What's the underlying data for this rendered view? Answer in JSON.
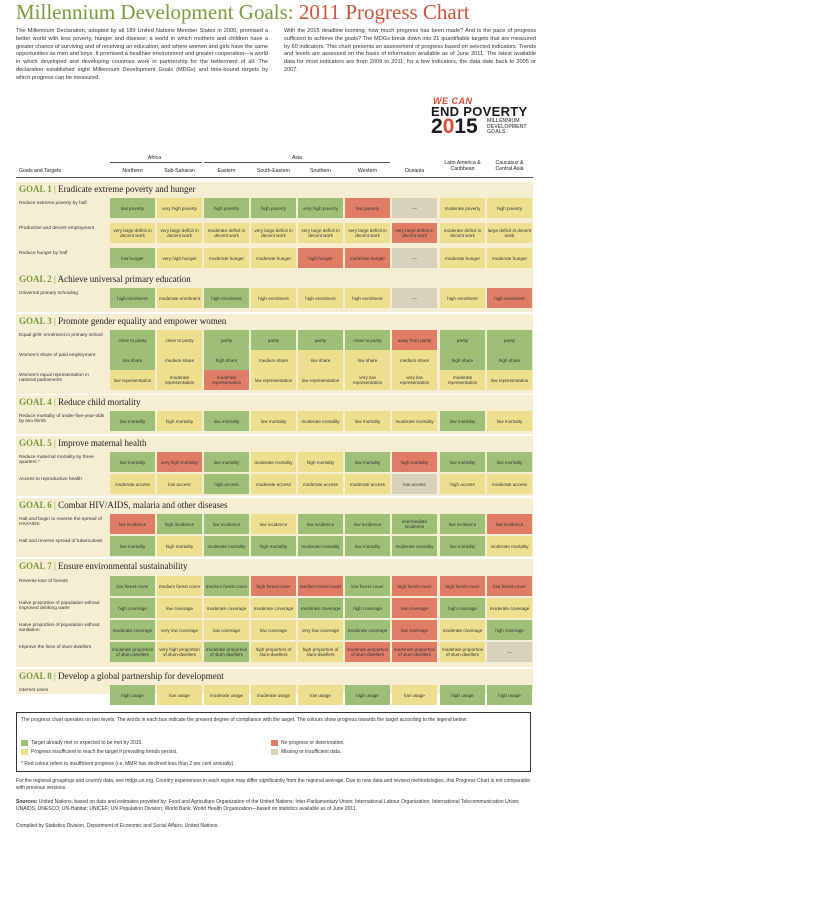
{
  "title": {
    "part1": "Millennium Development Goals:",
    "part2": "2011 Progress Chart"
  },
  "intro": {
    "left": "The Millennium Declaration, adopted by all 189 United Nations Member States in 2000, promised a better world with less poverty, hunger and disease; a world in which mothers and children have a greater chance of surviving and of receiving an education, and where women and girls have the same opportunities as men and boys. It promised a healthier environment and greater cooperation—a world in which developed and developing countries work in partnership for the betterment of all. The declaration established eight Millennium Development Goals (MDGs) and time-bound targets by which progress can be measured.",
    "right": "With the 2015 deadline looming, how much progress has been made? And is the pace of progress sufficient to achieve the goals? The MDGs break down into 21 quantifiable targets that are measured by 60 indicators. This chart presents an assessment of progress based on selected indicators. Trends and levels are assessed on the basis of information available as of June 2011. The latest available data for most indicators are from 2009 to 2011; for a few indicators, the data date back to 2005 or 2007."
  },
  "logo": {
    "we_can": "WE CAN",
    "end_poverty": "END POVERTY",
    "year_a": "2",
    "year_o": "0",
    "year_b": "15",
    "mdg": "MILLENNIUM\nDEVELOPMENT\nGOALS"
  },
  "header": {
    "groups": [
      "Africa",
      "Asia"
    ],
    "goals_label": "Goals and Targets",
    "regions": [
      "Northern",
      "Sub-Saharan",
      "Eastern",
      "South-Eastern",
      "Southern",
      "Western",
      "Oceania",
      "Latin America & Caribbean",
      "Caucasus & Central Asia"
    ]
  },
  "goals": [
    {
      "num": "GOAL 1",
      "title": "Eradicate extreme poverty and hunger",
      "rows": [
        {
          "target": "Reduce extreme poverty by half",
          "cells": [
            [
              "low poverty",
              "g"
            ],
            [
              "very high poverty",
              "y"
            ],
            [
              "high poverty",
              "g"
            ],
            [
              "high poverty",
              "g"
            ],
            [
              "very high poverty",
              "g"
            ],
            [
              "low poverty",
              "r"
            ],
            [
              "—",
              "x"
            ],
            [
              "moderate poverty",
              "y"
            ],
            [
              "high poverty",
              "y"
            ]
          ]
        },
        {
          "target": "Productive and decent employment",
          "cells": [
            [
              "very large deficit in decent work",
              "y"
            ],
            [
              "very large deficit in decent work",
              "y"
            ],
            [
              "moderate deficit in decent work",
              "y"
            ],
            [
              "very large deficit in decent work",
              "y"
            ],
            [
              "very large deficit in decent work",
              "y"
            ],
            [
              "very large deficit in decent work",
              "y"
            ],
            [
              "very large deficit in decent work",
              "r"
            ],
            [
              "moderate deficit in decent work",
              "y"
            ],
            [
              "large deficit in decent work",
              "y"
            ]
          ]
        },
        {
          "target": "Reduce hunger by half",
          "cells": [
            [
              "low hunger",
              "g"
            ],
            [
              "very high hunger",
              "y"
            ],
            [
              "moderate hunger",
              "y"
            ],
            [
              "moderate hunger",
              "y"
            ],
            [
              "high hunger",
              "r"
            ],
            [
              "moderate hunger",
              "r"
            ],
            [
              "—",
              "x"
            ],
            [
              "moderate hunger",
              "y"
            ],
            [
              "moderate hunger",
              "y"
            ]
          ]
        }
      ]
    },
    {
      "num": "GOAL 2",
      "title": "Achieve universal primary education",
      "rows": [
        {
          "target": "Universal primary schooling",
          "cells": [
            [
              "high enrolment",
              "g"
            ],
            [
              "moderate enrolment",
              "y"
            ],
            [
              "high enrolment",
              "g"
            ],
            [
              "high enrolment",
              "y"
            ],
            [
              "high enrolment",
              "y"
            ],
            [
              "high enrolment",
              "y"
            ],
            [
              "—",
              "x"
            ],
            [
              "high enrolment",
              "y"
            ],
            [
              "high enrolment",
              "r"
            ]
          ]
        }
      ]
    },
    {
      "num": "GOAL 3",
      "title": "Promote gender equality and empower women",
      "rows": [
        {
          "target": "Equal girls' enrolment in primary school",
          "cells": [
            [
              "close to parity",
              "g"
            ],
            [
              "close to parity",
              "y"
            ],
            [
              "parity",
              "g"
            ],
            [
              "parity",
              "g"
            ],
            [
              "parity",
              "g"
            ],
            [
              "close to parity",
              "g"
            ],
            [
              "away from parity",
              "r"
            ],
            [
              "parity",
              "g"
            ],
            [
              "parity",
              "g"
            ]
          ]
        },
        {
          "target": "Women's share of paid employment",
          "cells": [
            [
              "low share",
              "g"
            ],
            [
              "medium share",
              "y"
            ],
            [
              "high share",
              "g"
            ],
            [
              "medium share",
              "y"
            ],
            [
              "low share",
              "y"
            ],
            [
              "low share",
              "y"
            ],
            [
              "medium share",
              "y"
            ],
            [
              "high share",
              "g"
            ],
            [
              "high share",
              "g"
            ]
          ]
        },
        {
          "target": "Women's equal representation in national parliaments",
          "cells": [
            [
              "low representation",
              "y"
            ],
            [
              "moderate representation",
              "y"
            ],
            [
              "moderate representation",
              "r"
            ],
            [
              "low representation",
              "y"
            ],
            [
              "low representation",
              "y"
            ],
            [
              "very low representation",
              "y"
            ],
            [
              "very low representation",
              "y"
            ],
            [
              "moderate representation",
              "y"
            ],
            [
              "low representation",
              "y"
            ]
          ]
        }
      ]
    },
    {
      "num": "GOAL 4",
      "title": "Reduce child mortality",
      "rows": [
        {
          "target": "Reduce mortality of under-five-year-olds by two thirds",
          "cells": [
            [
              "low mortality",
              "g"
            ],
            [
              "high mortality",
              "y"
            ],
            [
              "low mortality",
              "g"
            ],
            [
              "low mortality",
              "y"
            ],
            [
              "moderate mortality",
              "y"
            ],
            [
              "low mortality",
              "y"
            ],
            [
              "moderate mortality",
              "y"
            ],
            [
              "low mortality",
              "g"
            ],
            [
              "low mortality",
              "y"
            ]
          ]
        }
      ]
    },
    {
      "num": "GOAL 5",
      "title": "Improve maternal health",
      "rows": [
        {
          "target": "Reduce maternal mortality by three quarters *",
          "cells": [
            [
              "low mortality",
              "g"
            ],
            [
              "very high mortality",
              "r"
            ],
            [
              "low mortality",
              "g"
            ],
            [
              "moderate mortality",
              "y"
            ],
            [
              "high mortality",
              "y"
            ],
            [
              "low mortality",
              "g"
            ],
            [
              "high mortality",
              "r"
            ],
            [
              "low mortality",
              "g"
            ],
            [
              "low mortality",
              "g"
            ]
          ]
        },
        {
          "target": "Access to reproductive health",
          "cells": [
            [
              "moderate access",
              "y"
            ],
            [
              "low access",
              "y"
            ],
            [
              "high access",
              "g"
            ],
            [
              "moderate access",
              "y"
            ],
            [
              "moderate access",
              "y"
            ],
            [
              "moderate access",
              "y"
            ],
            [
              "low access",
              "x"
            ],
            [
              "high access",
              "y"
            ],
            [
              "moderate access",
              "y"
            ]
          ]
        }
      ]
    },
    {
      "num": "GOAL 6",
      "title": "Combat HIV/AIDS, malaria and other diseases",
      "rows": [
        {
          "target": "Halt and begin to reverse the spread of HIV/AIDS",
          "cells": [
            [
              "low incidence",
              "r"
            ],
            [
              "high incidence",
              "g"
            ],
            [
              "low incidence",
              "g"
            ],
            [
              "low incidence",
              "y"
            ],
            [
              "low incidence",
              "g"
            ],
            [
              "low incidence",
              "g"
            ],
            [
              "intermediate incidence",
              "g"
            ],
            [
              "low incidence",
              "g"
            ],
            [
              "low incidence",
              "r"
            ]
          ]
        },
        {
          "target": "Halt and reverse spread of tuberculosis",
          "cells": [
            [
              "low mortality",
              "g"
            ],
            [
              "high mortality",
              "y"
            ],
            [
              "moderate mortality",
              "g"
            ],
            [
              "high mortality",
              "g"
            ],
            [
              "moderate mortality",
              "g"
            ],
            [
              "low mortality",
              "g"
            ],
            [
              "moderate mortality",
              "g"
            ],
            [
              "low mortality",
              "g"
            ],
            [
              "moderate mortality",
              "y"
            ]
          ]
        }
      ]
    },
    {
      "num": "GOAL 7",
      "title": "Ensure environmental sustainability",
      "rows": [
        {
          "target": "Reverse loss of forests",
          "cells": [
            [
              "low forest cover",
              "g"
            ],
            [
              "medium forest cover",
              "y"
            ],
            [
              "medium forest cover",
              "g"
            ],
            [
              "high forest cover",
              "r"
            ],
            [
              "medium forest cover",
              "r"
            ],
            [
              "low forest cover",
              "g"
            ],
            [
              "high forest cover",
              "r"
            ],
            [
              "high forest cover",
              "r"
            ],
            [
              "low forest cover",
              "r"
            ]
          ]
        },
        {
          "target": "Halve proportion of population without improved drinking water",
          "cells": [
            [
              "high coverage",
              "g"
            ],
            [
              "low coverage",
              "y"
            ],
            [
              "moderate coverage",
              "y"
            ],
            [
              "moderate coverage",
              "y"
            ],
            [
              "moderate coverage",
              "g"
            ],
            [
              "high coverage",
              "g"
            ],
            [
              "low coverage",
              "r"
            ],
            [
              "high coverage",
              "g"
            ],
            [
              "moderate coverage",
              "y"
            ]
          ]
        },
        {
          "target": "Halve proportion of population without sanitation",
          "cells": [
            [
              "moderate coverage",
              "g"
            ],
            [
              "very low coverage",
              "y"
            ],
            [
              "low coverage",
              "y"
            ],
            [
              "low coverage",
              "y"
            ],
            [
              "very low coverage",
              "y"
            ],
            [
              "moderate coverage",
              "g"
            ],
            [
              "low coverage",
              "r"
            ],
            [
              "moderate coverage",
              "y"
            ],
            [
              "high coverage",
              "g"
            ]
          ]
        },
        {
          "target": "Improve the lives of slum-dwellers",
          "cells": [
            [
              "moderate proportion of slum-dwellers",
              "g"
            ],
            [
              "very high proportion of slum-dwellers",
              "y"
            ],
            [
              "moderate proportion of slum-dwellers",
              "g"
            ],
            [
              "high proportion of slum-dwellers",
              "y"
            ],
            [
              "high proportion of slum-dwellers",
              "y"
            ],
            [
              "moderate proportion of slum-dwellers",
              "r"
            ],
            [
              "moderate proportion of slum-dwellers",
              "r"
            ],
            [
              "moderate proportion of slum-dwellers",
              "y"
            ],
            [
              "—",
              "x"
            ]
          ]
        }
      ]
    },
    {
      "num": "GOAL 8",
      "title": "Develop a global partnership for development",
      "rows": [
        {
          "target": "Internet users",
          "cells": [
            [
              "high usage",
              "g"
            ],
            [
              "low usage",
              "y"
            ],
            [
              "moderate usage",
              "y"
            ],
            [
              "moderate usage",
              "y"
            ],
            [
              "low usage",
              "y"
            ],
            [
              "high usage",
              "g"
            ],
            [
              "low usage",
              "y"
            ],
            [
              "high usage",
              "g"
            ],
            [
              "high usage",
              "g"
            ]
          ]
        }
      ]
    }
  ],
  "legend": {
    "text": "The progress chart operates on two levels. The words in each box indicate the present degree of compliance with the target. The colours show progress towards the target according to the legend below:",
    "green": "Target already met or expected to be met by 2015.",
    "yellow": "Progress insufficient to reach the target if prevailing trends persist.",
    "red": "No progress or deterioration.",
    "grey": "Missing or insufficient data.",
    "note": "* Red colour refers to insufficient progress (i.e. MMR has declined less than 2 per cent annually).",
    "colors": {
      "green": "#9dbf77",
      "yellow": "#eedf8e",
      "red": "#e07d67",
      "grey": "#d8d2bd"
    }
  },
  "footer": {
    "groupings": "For the regional groupings and country data, see mdgs.un.org. Country experiences in each region may differ significantly from the regional average. Due to new data and revised methodologies, this Progress Chart is not comparable with previous versions.",
    "sources_label": "Sources:",
    "sources": "United Nations, based on data and estimates provided by: Food and Agriculture Organization of the United Nations; Inter-Parliamentary Union; International Labour Organization; International Telecommunication Union; UNAIDS; UNESCO; UN-Habitat; UNICEF; UN Population Division; World Bank; World Health Organization—based on statistics available as of June 2011.",
    "compiled": "Compiled by Statistics Division, Department of Economic and Social Affairs, United Nations."
  }
}
